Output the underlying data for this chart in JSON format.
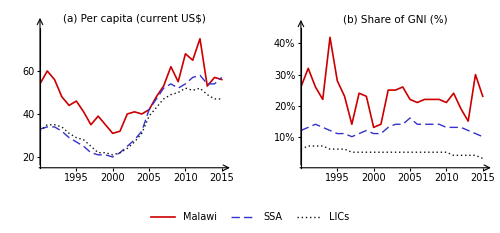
{
  "years": [
    1990,
    1991,
    1992,
    1993,
    1994,
    1995,
    1996,
    1997,
    1998,
    1999,
    2000,
    2001,
    2002,
    2003,
    2004,
    2005,
    2006,
    2007,
    2008,
    2009,
    2010,
    2011,
    2012,
    2013,
    2014,
    2015
  ],
  "malawi_pc": [
    54,
    60,
    56,
    48,
    44,
    46,
    41,
    35,
    39,
    35,
    31,
    32,
    40,
    41,
    40,
    42,
    48,
    53,
    62,
    55,
    68,
    65,
    75,
    53,
    57,
    56
  ],
  "ssa_pc": [
    33,
    34,
    34,
    32,
    29,
    27,
    25,
    22,
    21,
    21,
    20,
    22,
    25,
    28,
    32,
    42,
    47,
    52,
    54,
    52,
    54,
    57,
    58,
    54,
    54,
    57
  ],
  "lics_pc": [
    32,
    35,
    35,
    34,
    31,
    29,
    28,
    25,
    22,
    22,
    21,
    22,
    24,
    27,
    31,
    39,
    43,
    47,
    49,
    50,
    52,
    51,
    52,
    49,
    47,
    47
  ],
  "malawi_gni": [
    26,
    32,
    26,
    22,
    42,
    28,
    23,
    14,
    24,
    23,
    13,
    14,
    25,
    25,
    26,
    22,
    21,
    22,
    22,
    22,
    21,
    24,
    19,
    15,
    30,
    23
  ],
  "ssa_gni": [
    12,
    13,
    14,
    13,
    12,
    11,
    11,
    10,
    11,
    12,
    11,
    11,
    13,
    14,
    14,
    16,
    14,
    14,
    14,
    14,
    13,
    13,
    13,
    12,
    11,
    10
  ],
  "lics_gni": [
    6,
    7,
    7,
    7,
    6,
    6,
    6,
    5,
    5,
    5,
    5,
    5,
    5,
    5,
    5,
    5,
    5,
    5,
    5,
    5,
    5,
    4,
    4,
    4,
    4,
    3
  ],
  "colors": {
    "malawi": "#cc0000",
    "ssa": "#3333cc",
    "lics": "#111111"
  },
  "title_a": "(a) Per capita (current US$)",
  "title_b": "(b) Share of GNI (%)",
  "legend_malawi": "Malawi",
  "legend_ssa": "SSA",
  "legend_lics": "LICs",
  "xlim_a": [
    1990,
    2016
  ],
  "xlim_b": [
    1990,
    2016
  ],
  "ylim_a": [
    15,
    80
  ],
  "ylim_b": [
    0,
    45
  ],
  "yticks_a": [
    20,
    40,
    60
  ],
  "yticks_b": [
    10,
    20,
    30,
    40
  ],
  "xticks": [
    1995,
    2000,
    2005,
    2010,
    2015
  ]
}
